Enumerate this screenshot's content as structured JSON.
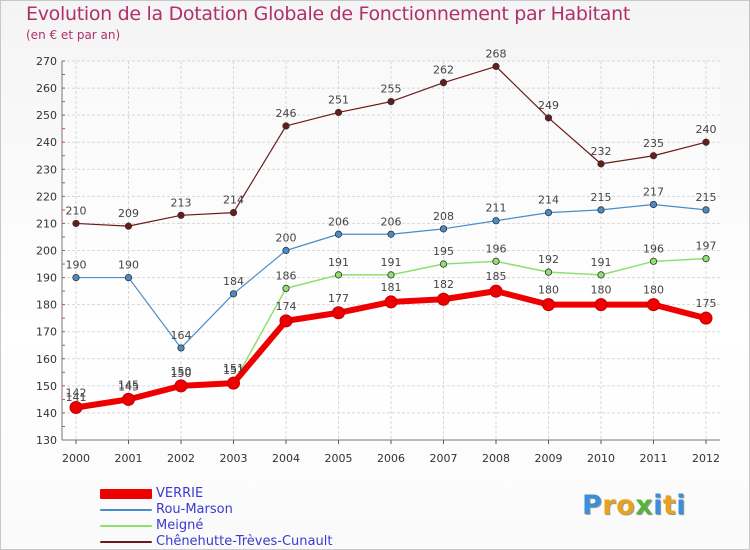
{
  "header": {
    "title": "Evolution de la Dotation Globale de Fonctionnement par Habitant",
    "subtitle": "(en € et par an)"
  },
  "logo": {
    "letters": [
      "P",
      "r",
      "o",
      "x",
      "i",
      "t",
      "i"
    ],
    "colors": [
      "#3a8fd8",
      "#e8a21c",
      "#e8a21c",
      "#56b33c",
      "#3a8fd8",
      "#e8a21c",
      "#3a8fd8"
    ]
  },
  "chart_data": {
    "type": "line",
    "title": "Evolution de la Dotation Globale de Fonctionnement par Habitant",
    "subtitle": "(en € et par an)",
    "categories": [
      "2000",
      "2001",
      "2002",
      "2003",
      "2004",
      "2005",
      "2006",
      "2007",
      "2008",
      "2009",
      "2010",
      "2011",
      "2012"
    ],
    "ylim": [
      130,
      270
    ],
    "yticks": [
      130,
      140,
      150,
      160,
      170,
      180,
      190,
      200,
      210,
      220,
      230,
      240,
      250,
      260,
      270
    ],
    "grid": true,
    "legend_position": "bottom-left",
    "series": [
      {
        "name": "Chênehutte-Trèves-Cunault",
        "color": "#6b1a1a",
        "width": 1.2,
        "values": [
          210,
          209,
          213,
          214,
          246,
          251,
          255,
          262,
          268,
          249,
          232,
          235,
          240
        ]
      },
      {
        "name": "Rou-Marson",
        "color": "#4a8cc8",
        "width": 1.2,
        "values": [
          190,
          190,
          164,
          184,
          200,
          206,
          206,
          208,
          211,
          214,
          215,
          217,
          215
        ]
      },
      {
        "name": "Meigné",
        "color": "#90e070",
        "width": 1.5,
        "values": [
          141,
          145,
          150,
          151,
          186,
          191,
          191,
          195,
          196,
          192,
          191,
          196,
          197
        ]
      },
      {
        "name": "VERRIE",
        "color": "#ee0000",
        "width": 6,
        "values": [
          142,
          145,
          150,
          151,
          174,
          177,
          181,
          182,
          185,
          180,
          180,
          180,
          175
        ]
      }
    ]
  }
}
